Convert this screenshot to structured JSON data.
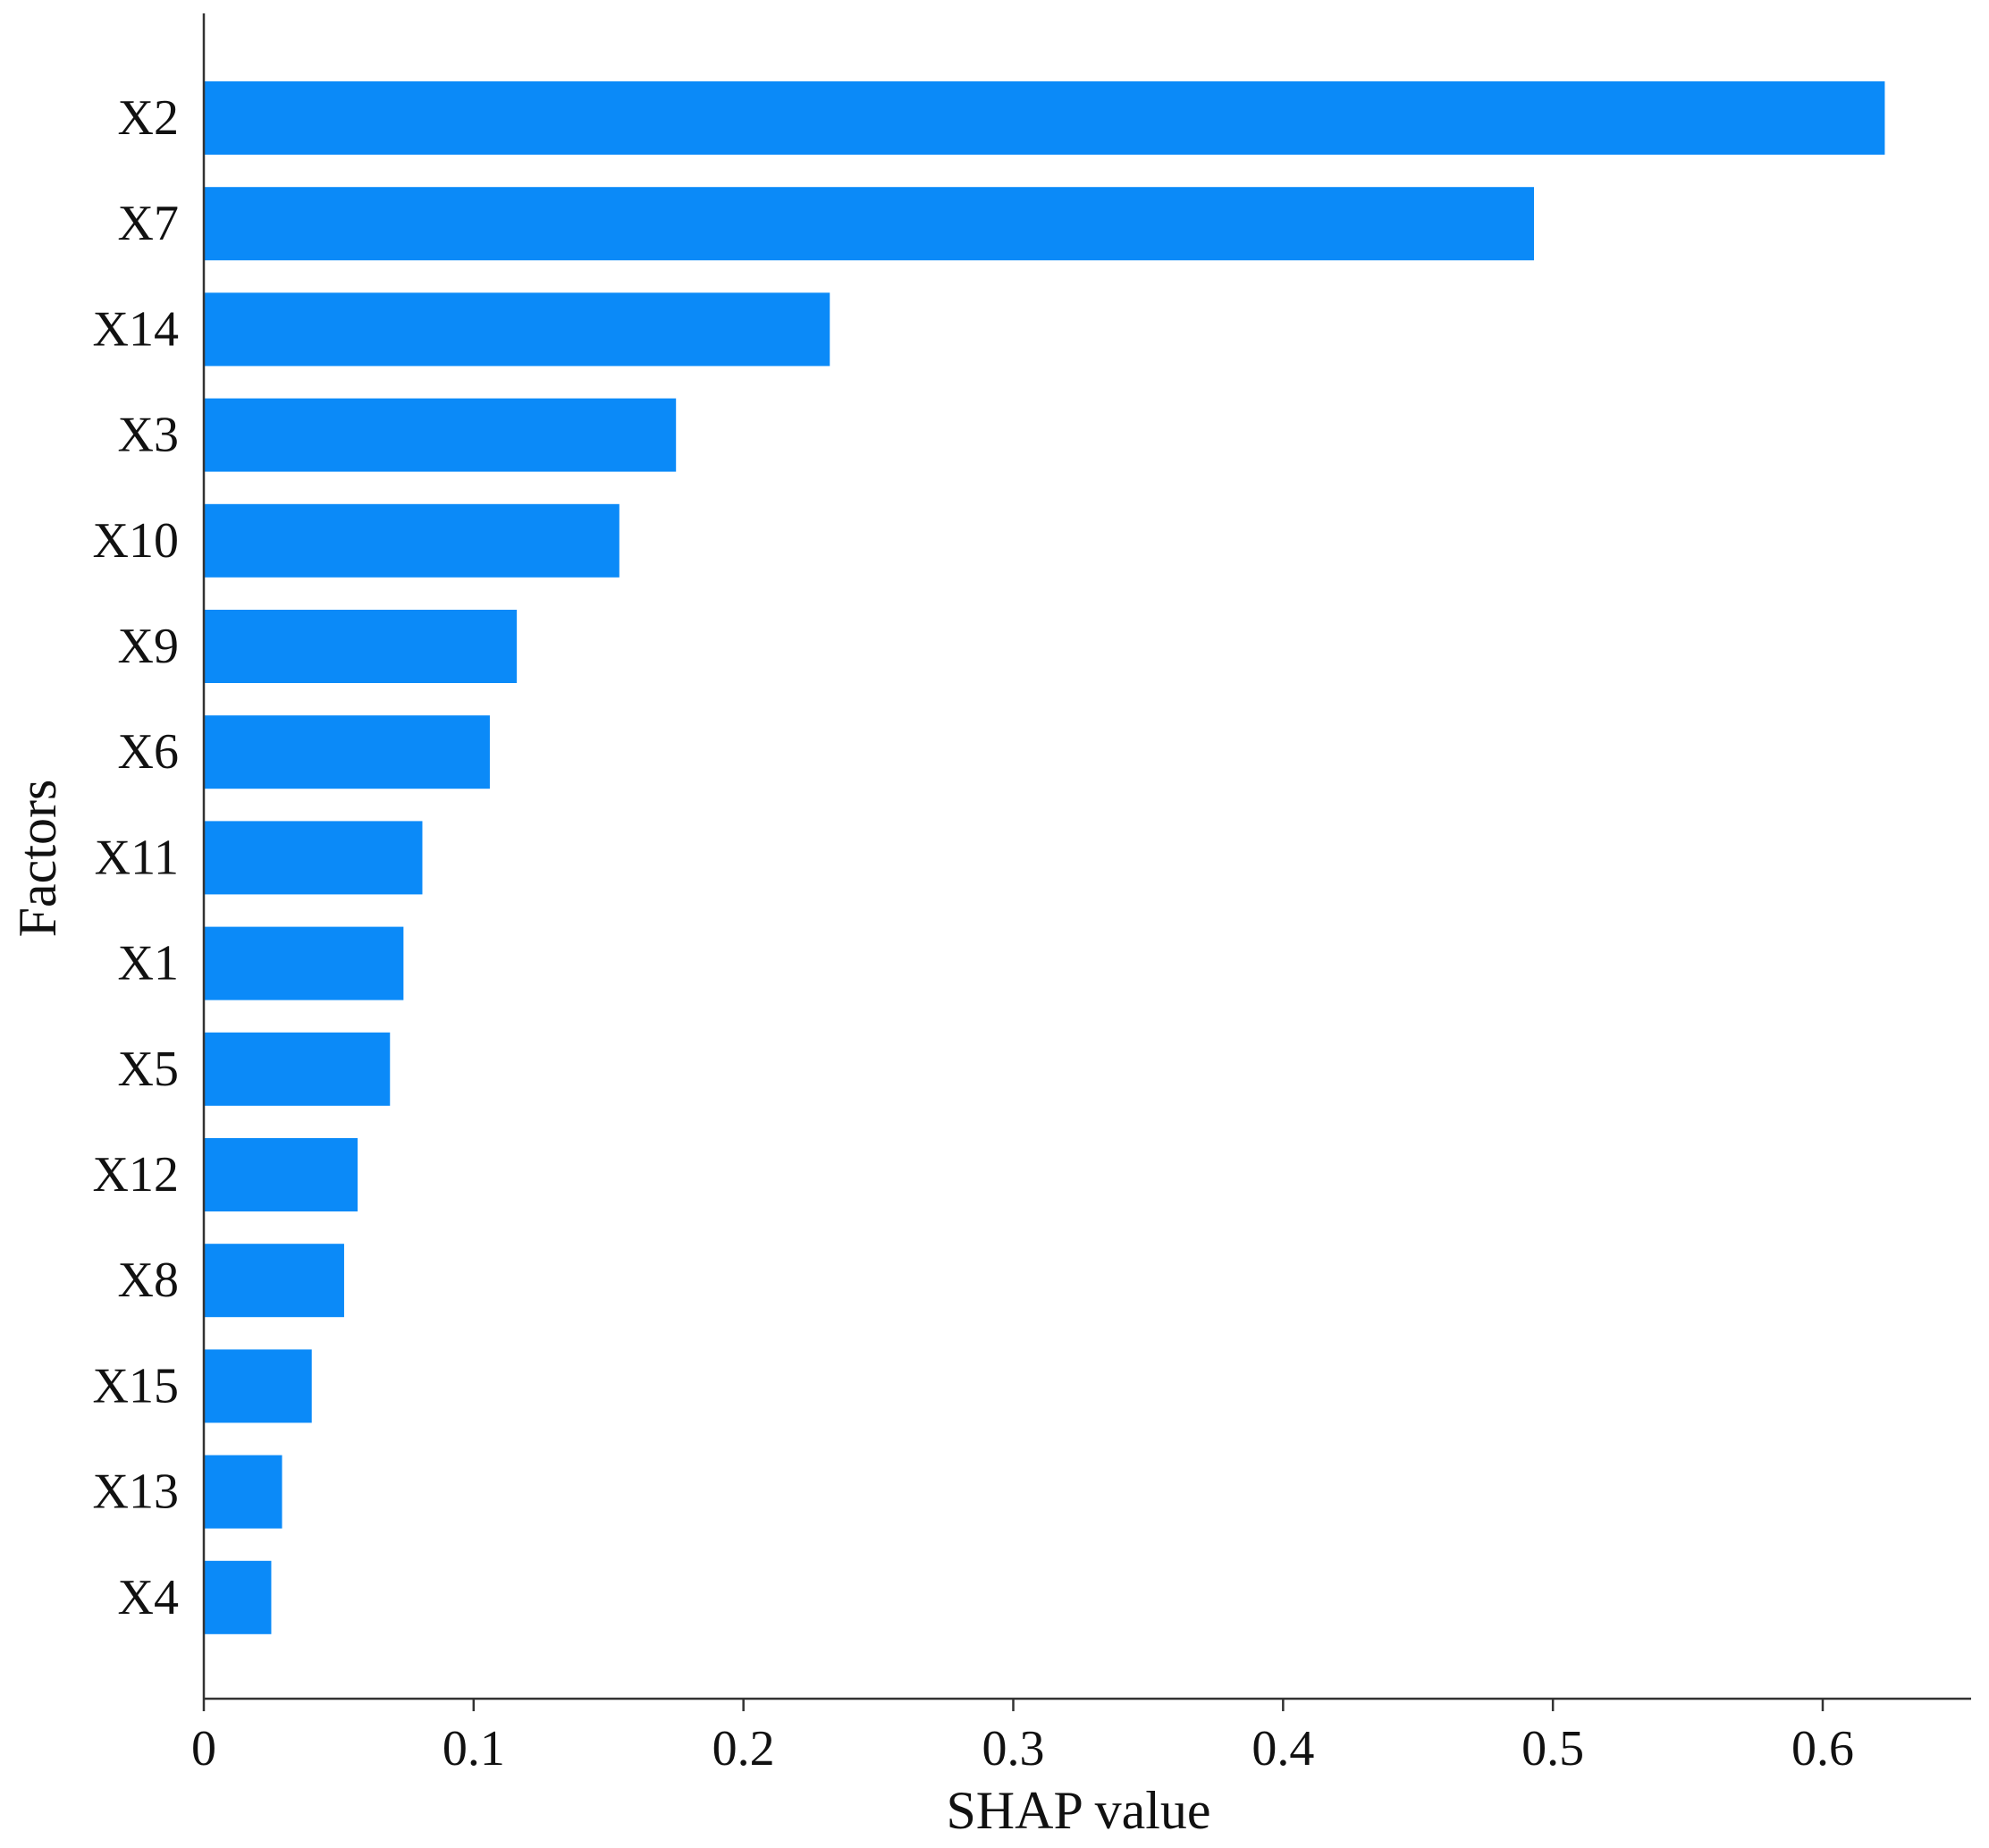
{
  "chart_data": {
    "type": "bar",
    "orientation": "horizontal",
    "categories": [
      "X2",
      "X7",
      "X14",
      "X3",
      "X10",
      "X9",
      "X6",
      "X11",
      "X1",
      "X5",
      "X12",
      "X8",
      "X15",
      "X13",
      "X4"
    ],
    "values": [
      0.623,
      0.493,
      0.232,
      0.175,
      0.154,
      0.116,
      0.106,
      0.081,
      0.074,
      0.069,
      0.057,
      0.052,
      0.04,
      0.029,
      0.025
    ],
    "xlabel": "SHAP value",
    "ylabel": "Factors",
    "xlim": [
      0,
      0.655
    ],
    "xticks": [
      0,
      0.1,
      0.2,
      0.3,
      0.4,
      0.5,
      0.6
    ],
    "xtick_labels": [
      "0",
      "0.1",
      "0.2",
      "0.3",
      "0.4",
      "0.5",
      "0.6"
    ],
    "grid": false,
    "bar_color": "#0b8af8"
  }
}
